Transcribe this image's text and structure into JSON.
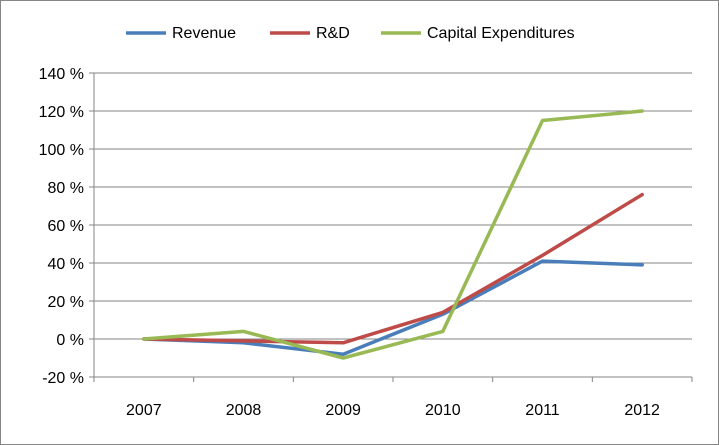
{
  "chart_data": {
    "type": "line",
    "categories": [
      "2007",
      "2008",
      "2009",
      "2010",
      "2011",
      "2012"
    ],
    "series": [
      {
        "name": "Revenue",
        "values": [
          0,
          -2,
          -8,
          13,
          41,
          39
        ],
        "color": "#4a7ebb"
      },
      {
        "name": "R&D",
        "values": [
          0,
          -1,
          -2,
          14,
          44,
          76
        ],
        "color": "#be4b48"
      },
      {
        "name": "Capital Expenditures",
        "values": [
          0,
          4,
          -10,
          4,
          115,
          120
        ],
        "color": "#98b954"
      }
    ],
    "y_ticks": [
      "140 %",
      "120 %",
      "100 %",
      "80 %",
      "60 %",
      "40 %",
      "20 %",
      "0 %",
      "-20 %"
    ],
    "ylim": [
      -20,
      140
    ],
    "y_unit": "%",
    "grid": true,
    "legend_position": "top"
  }
}
